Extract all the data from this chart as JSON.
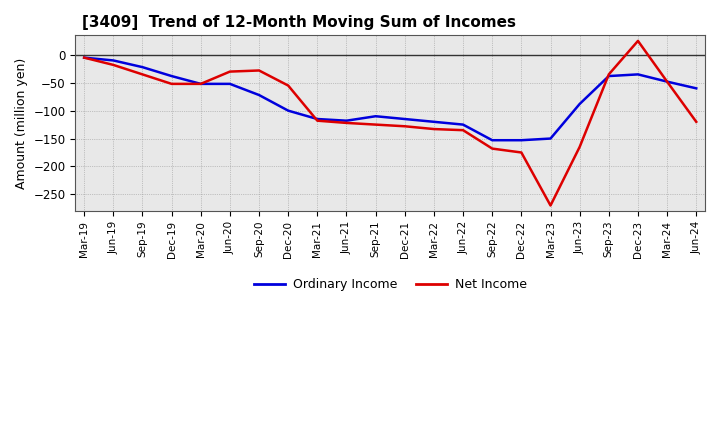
{
  "title": "[3409]  Trend of 12-Month Moving Sum of Incomes",
  "ylabel": "Amount (million yen)",
  "ylim": [
    -280,
    35
  ],
  "yticks": [
    0,
    -50,
    -100,
    -150,
    -200,
    -250
  ],
  "background_color": "#ffffff",
  "plot_bg_color": "#e8e8e8",
  "grid_color": "#999999",
  "ordinary_income_color": "#0000dd",
  "net_income_color": "#dd0000",
  "x_labels": [
    "Mar-19",
    "Jun-19",
    "Sep-19",
    "Dec-19",
    "Mar-20",
    "Jun-20",
    "Sep-20",
    "Dec-20",
    "Mar-21",
    "Jun-21",
    "Sep-21",
    "Dec-21",
    "Mar-22",
    "Jun-22",
    "Sep-22",
    "Dec-22",
    "Mar-23",
    "Jun-23",
    "Sep-23",
    "Dec-23",
    "Mar-24",
    "Jun-24"
  ],
  "ordinary_income": [
    -5,
    -10,
    -22,
    -38,
    -52,
    -52,
    -72,
    -100,
    -115,
    -118,
    -110,
    -115,
    -120,
    -125,
    -153,
    -153,
    -150,
    -88,
    -38,
    -35,
    -48,
    -60
  ],
  "net_income": [
    -5,
    -18,
    -35,
    -52,
    -52,
    -30,
    -28,
    -55,
    -118,
    -122,
    -125,
    -128,
    -133,
    -135,
    -168,
    -175,
    -270,
    -165,
    -35,
    25,
    -48,
    -120
  ]
}
